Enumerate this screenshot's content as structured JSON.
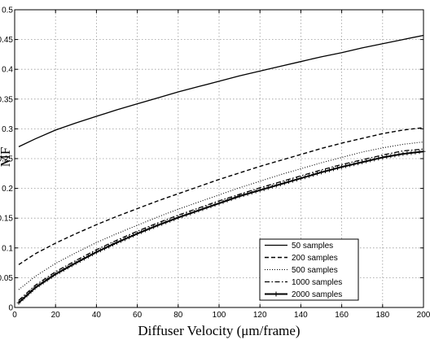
{
  "chart_data": {
    "type": "line",
    "xlabel": "Diffuser Velocity (μm/frame)",
    "ylabel": "MF",
    "xlim": [
      0,
      200
    ],
    "ylim": [
      0,
      0.5
    ],
    "xticks": [
      "0",
      "20",
      "40",
      "60",
      "80",
      "100",
      "120",
      "140",
      "160",
      "180",
      "200"
    ],
    "yticks": [
      "0",
      "0.05",
      "0.1",
      "0.15",
      "0.2",
      "0.25",
      "0.3",
      "0.35",
      "0.4",
      "0.45",
      "0.5"
    ],
    "grid": true,
    "legend_position": "bottom-right",
    "x": [
      2,
      10,
      20,
      30,
      40,
      50,
      60,
      70,
      80,
      90,
      100,
      110,
      120,
      130,
      140,
      150,
      160,
      170,
      180,
      190,
      200
    ],
    "series": [
      {
        "name": "50 samples",
        "style": "solid",
        "values": [
          0.27,
          0.283,
          0.298,
          0.31,
          0.321,
          0.332,
          0.342,
          0.352,
          0.362,
          0.371,
          0.38,
          0.389,
          0.397,
          0.405,
          0.413,
          0.421,
          0.428,
          0.436,
          0.443,
          0.45,
          0.457
        ]
      },
      {
        "name": "200 samples",
        "style": "dashed",
        "values": [
          0.072,
          0.09,
          0.108,
          0.124,
          0.139,
          0.153,
          0.166,
          0.179,
          0.191,
          0.203,
          0.215,
          0.226,
          0.237,
          0.247,
          0.257,
          0.267,
          0.276,
          0.284,
          0.292,
          0.298,
          0.302
        ]
      },
      {
        "name": "500 samples",
        "style": "dotted",
        "values": [
          0.03,
          0.052,
          0.074,
          0.092,
          0.109,
          0.124,
          0.138,
          0.152,
          0.165,
          0.177,
          0.189,
          0.201,
          0.212,
          0.223,
          0.233,
          0.243,
          0.252,
          0.261,
          0.268,
          0.274,
          0.278
        ]
      },
      {
        "name": "1000 samples",
        "style": "dashdot",
        "values": [
          0.012,
          0.037,
          0.06,
          0.079,
          0.097,
          0.113,
          0.128,
          0.142,
          0.155,
          0.167,
          0.179,
          0.19,
          0.201,
          0.211,
          0.221,
          0.231,
          0.24,
          0.248,
          0.256,
          0.263,
          0.266
        ]
      },
      {
        "name": "2000 samples",
        "style": "plus-marker",
        "values": [
          0.008,
          0.033,
          0.056,
          0.075,
          0.093,
          0.109,
          0.124,
          0.138,
          0.151,
          0.163,
          0.175,
          0.187,
          0.197,
          0.207,
          0.217,
          0.227,
          0.236,
          0.244,
          0.252,
          0.258,
          0.262
        ]
      }
    ]
  }
}
